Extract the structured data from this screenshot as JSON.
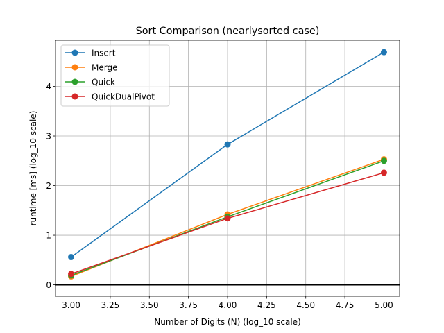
{
  "chart_data": {
    "type": "line",
    "title": "Sort Comparison (nearlysorted case)",
    "xlabel": "Number of Digits (N) (log_10 scale)",
    "ylabel": "runtime [ms] (log_10 scale)",
    "xlim": [
      2.9,
      5.1
    ],
    "ylim": [
      -0.23,
      4.93
    ],
    "xticks": [
      3.0,
      3.25,
      3.5,
      3.75,
      4.0,
      4.25,
      4.5,
      4.75,
      5.0
    ],
    "xtick_labels": [
      "3.00",
      "3.25",
      "3.50",
      "3.75",
      "4.00",
      "4.25",
      "4.50",
      "4.75",
      "5.00"
    ],
    "yticks": [
      0,
      1,
      2,
      3,
      4
    ],
    "ytick_labels": [
      "0",
      "1",
      "2",
      "3",
      "4"
    ],
    "grid": true,
    "reference_line_y": 0,
    "legend_position": "top-left",
    "x": [
      3.0,
      4.0,
      5.0
    ],
    "series": [
      {
        "name": "Insert",
        "color": "#1f77b4",
        "values": [
          0.56,
          2.83,
          4.69
        ]
      },
      {
        "name": "Merge",
        "color": "#ff7f0e",
        "values": [
          0.17,
          1.42,
          2.53
        ]
      },
      {
        "name": "Quick",
        "color": "#2ca02c",
        "values": [
          0.19,
          1.37,
          2.5
        ]
      },
      {
        "name": "QuickDualPivot",
        "color": "#d62728",
        "values": [
          0.22,
          1.34,
          2.26
        ]
      }
    ]
  }
}
